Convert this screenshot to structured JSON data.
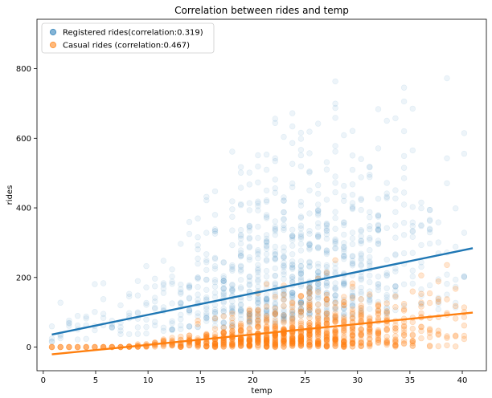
{
  "chart_data": {
    "type": "scatter",
    "title": "Correlation between rides and temp",
    "xlabel": "temp",
    "ylabel": "rides",
    "xlim": [
      -0.6,
      42.3
    ],
    "ylim": [
      -68,
      942
    ],
    "xticks": [
      0,
      5,
      10,
      15,
      20,
      25,
      30,
      35,
      40
    ],
    "yticks": [
      0,
      200,
      400,
      600,
      800
    ],
    "grid": false,
    "legend_position": "top-left",
    "series": [
      {
        "name": "Registered rides(correlation:0.319)",
        "color": "#1f77b4",
        "point_alpha": 0.08,
        "trend_line": {
          "x": [
            0.82,
            41.0
          ],
          "y": [
            36,
            284
          ]
        }
      },
      {
        "name": "Casual rides (correlation:0.467)",
        "color": "#ff7f0e",
        "point_alpha": 0.2,
        "trend_line": {
          "x": [
            0.82,
            41.0
          ],
          "y": [
            -21,
            99
          ]
        }
      }
    ]
  }
}
